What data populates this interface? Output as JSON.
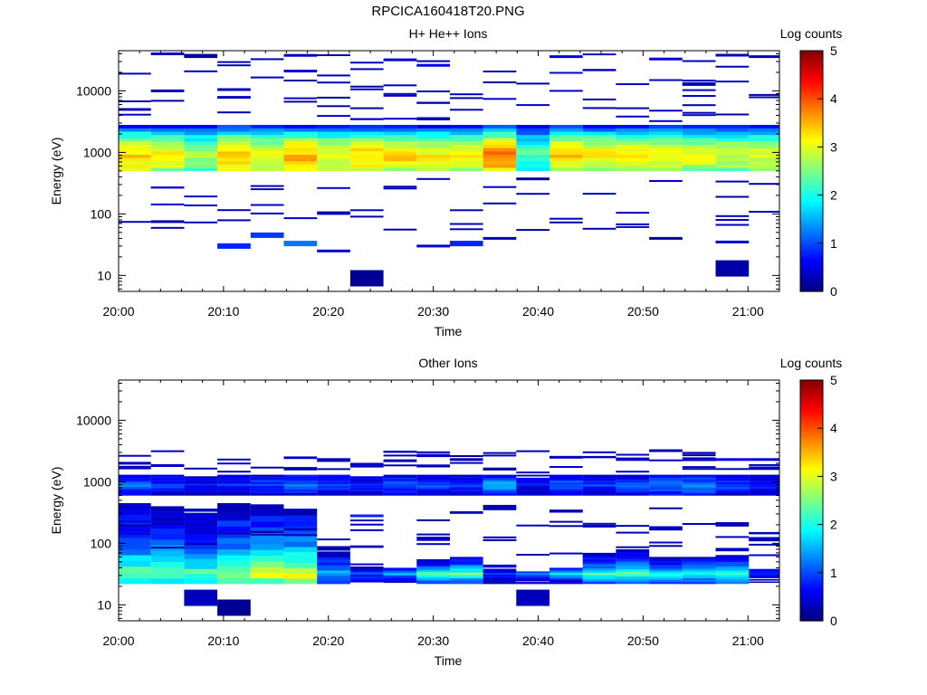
{
  "page": {
    "title": "RPCICA160418T20.PNG"
  },
  "chart_data": [
    {
      "type": "heatmap",
      "title": "H+ He++ Ions",
      "xlabel": "Time",
      "ylabel": "Energy (eV)",
      "colorbar_label": "Log counts",
      "x_ticks": [
        "20:00",
        "20:10",
        "20:20",
        "20:30",
        "20:40",
        "20:50",
        "21:00"
      ],
      "y_ticks": [
        "10",
        "100",
        "1000",
        "10000"
      ],
      "colorbar_ticks": [
        "0",
        "1",
        "2",
        "3",
        "4",
        "5"
      ],
      "yscale": "log",
      "ylim": [
        5.5,
        45000
      ],
      "xlim_minutes": [
        0,
        63
      ],
      "clim": [
        0,
        5
      ],
      "colormap": "jet",
      "time_bins": [
        "20:01:30",
        "20:04:40",
        "20:07:50",
        "20:11:00",
        "20:14:10",
        "20:17:20",
        "20:20:30",
        "20:23:40",
        "20:26:50",
        "20:30:00",
        "20:33:10",
        "20:36:20",
        "20:39:30",
        "20:42:40",
        "20:45:50",
        "20:49:00",
        "20:52:10",
        "20:55:20",
        "20:58:30",
        "21:01:40"
      ],
      "band": {
        "energy_range_eV": [
          500,
          2800
        ],
        "peak_energy_eV": 870,
        "peak_log_counts": [
          3.3,
          3.1,
          2.6,
          3.5,
          3.0,
          3.5,
          3.1,
          3.3,
          3.3,
          3.1,
          3.1,
          3.7,
          2.2,
          3.3,
          3.1,
          3.3,
          3.0,
          3.0,
          2.9,
          2.9
        ]
      },
      "sparse_hits": [
        {
          "t": "20:04:40",
          "e": 40000,
          "v": 0.3
        },
        {
          "t": "20:07:50",
          "e": 36000,
          "v": 0.2
        },
        {
          "t": "20:04:40",
          "e": 10000,
          "v": 0.3
        },
        {
          "t": "20:11:00",
          "e": 10500,
          "v": 0.3
        },
        {
          "t": "20:17:20",
          "e": 21000,
          "v": 0.4
        },
        {
          "t": "20:26:50",
          "e": 32000,
          "v": 0.4
        },
        {
          "t": "20:30:00",
          "e": 26000,
          "v": 0.5
        },
        {
          "t": "20:42:40",
          "e": 36000,
          "v": 0.5
        },
        {
          "t": "20:52:10",
          "e": 33000,
          "v": 0.5
        },
        {
          "t": "20:58:30",
          "e": 38000,
          "v": 0.3
        },
        {
          "t": "21:01:40",
          "e": 36000,
          "v": 0.3
        },
        {
          "t": "20:55:20",
          "e": 13000,
          "v": 0.3
        },
        {
          "t": "20:11:00",
          "e": 30,
          "v": 0.8
        },
        {
          "t": "20:14:10",
          "e": 45,
          "v": 0.9
        },
        {
          "t": "20:17:20",
          "e": 33,
          "v": 1.2
        },
        {
          "t": "20:20:30",
          "e": 25,
          "v": 0.4
        },
        {
          "t": "20:23:40",
          "e": 9,
          "v": 0.1
        },
        {
          "t": "20:30:00",
          "e": 30,
          "v": 0.4
        },
        {
          "t": "20:33:10",
          "e": 33,
          "v": 0.8
        },
        {
          "t": "20:36:20",
          "e": 40,
          "v": 0.3
        },
        {
          "t": "20:58:30",
          "e": 35,
          "v": 0.4
        },
        {
          "t": "20:58:30",
          "e": 13,
          "v": 0.2
        },
        {
          "t": "20:04:40",
          "e": 75,
          "v": 0.2
        },
        {
          "t": "20:52:10",
          "e": 40,
          "v": 0.2
        }
      ]
    },
    {
      "type": "heatmap",
      "title": "Other Ions",
      "xlabel": "Time",
      "ylabel": "Energy (eV)",
      "colorbar_label": "Log counts",
      "x_ticks": [
        "20:00",
        "20:10",
        "20:20",
        "20:30",
        "20:40",
        "20:50",
        "21:00"
      ],
      "y_ticks": [
        "10",
        "100",
        "1000",
        "10000"
      ],
      "colorbar_ticks": [
        "0",
        "1",
        "2",
        "3",
        "4",
        "5"
      ],
      "yscale": "log",
      "ylim": [
        5.5,
        45000
      ],
      "xlim_minutes": [
        0,
        63
      ],
      "clim": [
        0,
        5
      ],
      "colormap": "jet",
      "time_bins": [
        "20:01:30",
        "20:04:40",
        "20:07:50",
        "20:11:00",
        "20:14:10",
        "20:17:20",
        "20:20:30",
        "20:23:40",
        "20:26:50",
        "20:30:00",
        "20:33:10",
        "20:36:20",
        "20:39:30",
        "20:42:40",
        "20:45:50",
        "20:49:00",
        "20:52:10",
        "20:55:20",
        "20:58:30",
        "21:01:40"
      ],
      "upper_band": {
        "energy_range_eV": [
          600,
          1300
        ],
        "peak_log_counts": [
          1.2,
          1.0,
          0.7,
          0.8,
          1.0,
          1.3,
          1.0,
          0.8,
          1.1,
          1.0,
          0.9,
          1.5,
          0.7,
          1.2,
          0.8,
          1.1,
          1.3,
          1.4,
          1.0,
          0.8
        ]
      },
      "lower_band": {
        "energy_range_eV": [
          22,
          450
        ],
        "peak_energy_eV": 32,
        "peak_log_counts": [
          2.8,
          2.7,
          2.7,
          2.9,
          3.4,
          3.5,
          1.8,
          1.2,
          1.8,
          3.0,
          3.0,
          1.0,
          1.4,
          2.2,
          2.6,
          2.7,
          2.5,
          2.6,
          2.5,
          1.0
        ],
        "upper_edge_eV": [
          450,
          400,
          300,
          450,
          430,
          350,
          90,
          50,
          40,
          55,
          60,
          45,
          35,
          40,
          70,
          80,
          60,
          60,
          70,
          40
        ]
      },
      "sparse_hits": [
        {
          "t": "20:01:30",
          "e": 2000,
          "v": 0.3
        },
        {
          "t": "20:20:30",
          "e": 2300,
          "v": 0.3
        },
        {
          "t": "20:26:50",
          "e": 2200,
          "v": 0.2
        },
        {
          "t": "20:30:00",
          "e": 2700,
          "v": 0.3
        },
        {
          "t": "20:33:10",
          "e": 2300,
          "v": 0.2
        },
        {
          "t": "20:42:40",
          "e": 2500,
          "v": 0.3
        },
        {
          "t": "20:49:00",
          "e": 2300,
          "v": 0.3
        },
        {
          "t": "20:52:10",
          "e": 3200,
          "v": 0.2
        },
        {
          "t": "20:58:30",
          "e": 2300,
          "v": 0.5
        },
        {
          "t": "21:01:40",
          "e": 2300,
          "v": 0.4
        },
        {
          "t": "20:23:40",
          "e": 280,
          "v": 0.8
        },
        {
          "t": "20:30:00",
          "e": 115,
          "v": 0.3
        },
        {
          "t": "20:11:00",
          "e": 9,
          "v": 0.1
        },
        {
          "t": "20:07:50",
          "e": 13,
          "v": 0.3
        },
        {
          "t": "20:39:30",
          "e": 13,
          "v": 0.3
        },
        {
          "t": "20:45:50",
          "e": 190,
          "v": 0.3
        },
        {
          "t": "20:52:10",
          "e": 180,
          "v": 0.3
        },
        {
          "t": "20:58:30",
          "e": 210,
          "v": 0.3
        },
        {
          "t": "21:01:40",
          "e": 120,
          "v": 0.3
        },
        {
          "t": "20:36:20",
          "e": 400,
          "v": 0.3
        }
      ]
    }
  ]
}
